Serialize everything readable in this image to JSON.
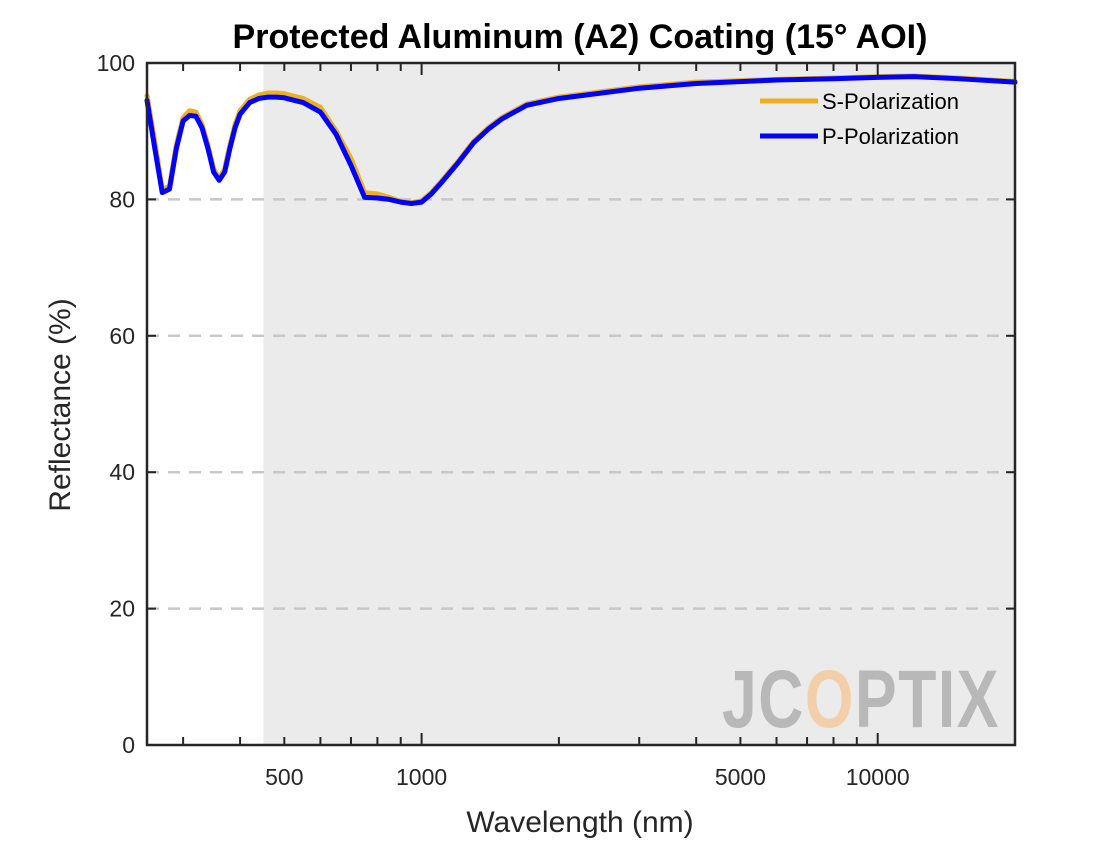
{
  "chart_data": {
    "type": "line",
    "title": "Protected Aluminum (A2) Coating  (15° AOI)",
    "xlabel": "Wavelength (nm)",
    "ylabel": "Reflectance (%)",
    "x_scale": "log",
    "xlim": [
      250,
      20000
    ],
    "ylim": [
      0,
      100
    ],
    "x_ticks": [
      500,
      1000,
      5000,
      10000
    ],
    "y_ticks": [
      0,
      20,
      40,
      60,
      80,
      100
    ],
    "grid": "horizontal dashed",
    "legend_position": "top-right",
    "shaded_region": [
      450,
      20000
    ],
    "series": [
      {
        "name": "S-Polarization",
        "color": "#edb120",
        "x": [
          250,
          260,
          270,
          280,
          290,
          300,
          310,
          320,
          330,
          340,
          350,
          360,
          370,
          380,
          390,
          400,
          420,
          440,
          460,
          480,
          500,
          520,
          550,
          600,
          650,
          700,
          750,
          800,
          850,
          900,
          950,
          1000,
          1050,
          1100,
          1200,
          1300,
          1400,
          1500,
          1700,
          2000,
          3000,
          4000,
          6000,
          8000,
          10000,
          12000,
          15000,
          20000
        ],
        "values": [
          95.2,
          88.5,
          81.5,
          81.9,
          88.0,
          92.0,
          93.0,
          92.8,
          91.0,
          88.0,
          84.5,
          83.0,
          84.5,
          88.0,
          91.0,
          93.0,
          94.7,
          95.3,
          95.6,
          95.6,
          95.5,
          95.2,
          94.8,
          93.5,
          90.0,
          86.0,
          81.0,
          80.8,
          80.3,
          79.7,
          79.5,
          79.8,
          81.0,
          82.5,
          85.5,
          88.5,
          90.5,
          92.0,
          94.0,
          95.0,
          96.5,
          97.2,
          97.6,
          97.8,
          98.0,
          98.1,
          97.8,
          97.3
        ]
      },
      {
        "name": "P-Polarization",
        "color": "#0000ff",
        "x": [
          250,
          260,
          270,
          280,
          290,
          300,
          310,
          320,
          330,
          340,
          350,
          360,
          370,
          380,
          390,
          400,
          420,
          440,
          460,
          480,
          500,
          520,
          550,
          600,
          650,
          700,
          750,
          800,
          850,
          900,
          950,
          1000,
          1050,
          1100,
          1200,
          1300,
          1400,
          1500,
          1700,
          2000,
          3000,
          4000,
          6000,
          8000,
          10000,
          12000,
          15000,
          20000
        ],
        "values": [
          94.5,
          87.5,
          81.0,
          81.5,
          87.5,
          91.5,
          92.3,
          92.2,
          90.5,
          87.5,
          84.0,
          82.8,
          84.0,
          87.5,
          90.5,
          92.5,
          94.2,
          94.8,
          95.0,
          95.0,
          94.9,
          94.6,
          94.2,
          92.8,
          89.5,
          85.0,
          80.3,
          80.2,
          80.0,
          79.6,
          79.4,
          79.6,
          80.8,
          82.3,
          85.3,
          88.3,
          90.3,
          91.8,
          93.8,
          94.8,
          96.3,
          97.0,
          97.5,
          97.7,
          97.9,
          98.0,
          97.7,
          97.2
        ]
      }
    ]
  },
  "watermark": {
    "text": "JCOPTIX",
    "accent_color": "#f2cfa8"
  }
}
